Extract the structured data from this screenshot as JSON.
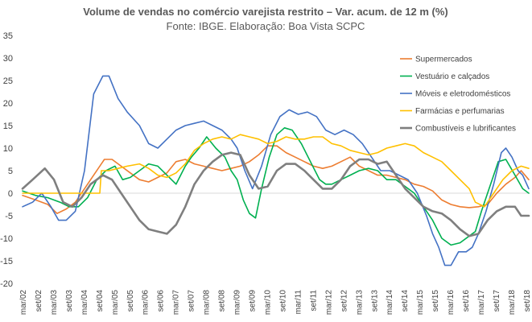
{
  "chart_data": {
    "type": "line",
    "title": "Volume de vendas no comércio varejista restrito – Var. acum. de 12 m (%)",
    "subtitle": "Fonte: IBGE. Elaboração: Boa Vista SCPC",
    "xlabel": "",
    "ylabel": "",
    "ylim": [
      -20,
      35
    ],
    "yticks": [
      -20,
      -15,
      -10,
      -5,
      0,
      5,
      10,
      15,
      20,
      25,
      30,
      35
    ],
    "xlim": [
      2002.17,
      2018.75
    ],
    "xtick_labels": [
      "mar/02",
      "set/02",
      "mar/03",
      "set/03",
      "mar/04",
      "set/04",
      "mar/05",
      "set/05",
      "mar/06",
      "set/06",
      "mar/07",
      "set/07",
      "mar/08",
      "set/08",
      "mar/09",
      "set/09",
      "mar/10",
      "set/10",
      "mar/11",
      "set/11",
      "mar/12",
      "set/12",
      "mar/13",
      "set/13",
      "mar/14",
      "set/14",
      "mar/15",
      "set/15",
      "mar/16",
      "set/16",
      "mar/17",
      "set/17",
      "mar/18",
      "set/18"
    ],
    "grid": false,
    "legend_position": "right",
    "series": [
      {
        "name": "Supermercados",
        "color": "#ED7D31",
        "x": [
          2002.17,
          2002.6,
          2003.0,
          2003.3,
          2003.6,
          2003.9,
          2004.2,
          2004.5,
          2004.85,
          2005.1,
          2005.4,
          2005.7,
          2006.0,
          2006.3,
          2006.6,
          2006.9,
          2007.2,
          2007.5,
          2007.8,
          2008.1,
          2008.4,
          2008.7,
          2009.0,
          2009.3,
          2009.6,
          2009.9,
          2010.2,
          2010.5,
          2010.8,
          2011.1,
          2011.4,
          2011.7,
          2012.0,
          2012.3,
          2012.6,
          2012.9,
          2013.2,
          2013.5,
          2013.8,
          2014.1,
          2014.4,
          2014.7,
          2015.0,
          2015.3,
          2015.6,
          2015.9,
          2016.2,
          2016.5,
          2016.8,
          2017.1,
          2017.4,
          2017.7,
          2018.0,
          2018.3,
          2018.5,
          2018.75
        ],
        "y": [
          -0.5,
          -1.5,
          -2.5,
          -4.5,
          -3.5,
          -2,
          1,
          4,
          7.5,
          7.5,
          6,
          4.5,
          3,
          2.5,
          3.5,
          4.5,
          7,
          7.5,
          6.5,
          6,
          5.5,
          5,
          5.5,
          6,
          7,
          8.5,
          10.5,
          10.5,
          9,
          8,
          7,
          6,
          5.5,
          6,
          7,
          8,
          6,
          5,
          4,
          4,
          3.5,
          3,
          2,
          1.5,
          0.5,
          -1.5,
          -2.5,
          -3,
          -3.2,
          -3,
          -2.5,
          0,
          2,
          3.5,
          5,
          3
        ]
      },
      {
        "name": "Vestuário e calçados",
        "color": "#00B050",
        "x": [
          2002.17,
          2002.6,
          2003.0,
          2003.4,
          2003.7,
          2004.0,
          2004.3,
          2004.6,
          2004.9,
          2005.2,
          2005.45,
          2005.7,
          2006.0,
          2006.3,
          2006.6,
          2006.9,
          2007.2,
          2007.5,
          2007.7,
          2007.95,
          2008.2,
          2008.5,
          2008.8,
          2009.0,
          2009.2,
          2009.4,
          2009.6,
          2009.8,
          2010.0,
          2010.25,
          2010.5,
          2010.75,
          2011.0,
          2011.3,
          2011.6,
          2011.9,
          2012.1,
          2012.3,
          2012.6,
          2012.9,
          2013.2,
          2013.5,
          2013.8,
          2014.1,
          2014.4,
          2014.7,
          2015.0,
          2015.3,
          2015.6,
          2015.9,
          2016.2,
          2016.5,
          2016.8,
          2017.0,
          2017.2,
          2017.5,
          2017.75,
          2018.0,
          2018.3,
          2018.55,
          2018.75
        ],
        "y": [
          0.5,
          -0.5,
          -1,
          -2,
          -3,
          -3,
          -1,
          3,
          5,
          6,
          3,
          3.5,
          5,
          6.5,
          6,
          4,
          2,
          6,
          8,
          10,
          12.5,
          10,
          8,
          5,
          3,
          -1.5,
          -4.5,
          -5.5,
          1,
          8,
          13,
          14.5,
          14,
          11,
          7,
          3,
          2,
          2,
          3,
          4,
          5,
          5.5,
          5,
          3,
          3,
          1.5,
          0,
          -3,
          -6,
          -10,
          -11.5,
          -11,
          -9.5,
          -8.5,
          -4,
          2,
          7,
          7.5,
          4,
          1,
          0
        ]
      },
      {
        "name": "Móveis e eletrodomésticos",
        "color": "#4472C4",
        "x": [
          2002.17,
          2002.5,
          2002.8,
          2003.1,
          2003.35,
          2003.6,
          2003.9,
          2004.2,
          2004.5,
          2004.8,
          2005.0,
          2005.3,
          2005.6,
          2006.0,
          2006.3,
          2006.6,
          2006.9,
          2007.2,
          2007.5,
          2007.8,
          2008.1,
          2008.4,
          2008.7,
          2009.0,
          2009.2,
          2009.45,
          2009.7,
          2010.0,
          2010.3,
          2010.6,
          2010.9,
          2011.2,
          2011.5,
          2011.8,
          2012.1,
          2012.4,
          2012.7,
          2013.0,
          2013.3,
          2013.6,
          2013.9,
          2014.2,
          2014.5,
          2014.8,
          2015.1,
          2015.4,
          2015.6,
          2015.8,
          2016.0,
          2016.2,
          2016.45,
          2016.7,
          2016.9,
          2017.1,
          2017.35,
          2017.6,
          2017.85,
          2018.0,
          2018.2,
          2018.4,
          2018.55,
          2018.75
        ],
        "y": [
          -3,
          -2,
          0,
          -3,
          -6,
          -6,
          -4,
          5,
          22,
          26,
          26,
          21,
          18,
          15,
          11,
          10,
          12,
          14,
          15,
          15.5,
          16,
          15,
          14,
          12,
          10,
          5,
          1,
          6,
          13,
          17,
          18.5,
          17.5,
          18,
          17,
          14,
          13,
          14,
          13,
          11,
          8,
          5,
          5,
          4,
          3,
          0,
          -5,
          -9,
          -12,
          -16,
          -16,
          -13,
          -13,
          -12,
          -9,
          -4,
          2,
          9,
          10,
          8,
          5,
          4,
          1
        ]
      },
      {
        "name": "Farmácias e perfumarias",
        "color": "#FFC000",
        "x": [
          2002.17,
          2002.6,
          2003.0,
          2003.5,
          2003.9,
          2004.2,
          2004.5,
          2004.7,
          2004.75,
          2005.0,
          2005.3,
          2005.6,
          2006.0,
          2006.3,
          2006.6,
          2006.9,
          2007.2,
          2007.5,
          2007.8,
          2008.1,
          2008.4,
          2008.7,
          2009.0,
          2009.3,
          2009.6,
          2009.9,
          2010.2,
          2010.5,
          2010.8,
          2011.1,
          2011.4,
          2011.7,
          2012.0,
          2012.3,
          2012.6,
          2012.9,
          2013.2,
          2013.5,
          2013.8,
          2014.1,
          2014.4,
          2014.7,
          2015.0,
          2015.3,
          2015.6,
          2015.9,
          2016.2,
          2016.5,
          2016.8,
          2017.0,
          2017.3,
          2017.6,
          2017.9,
          2018.2,
          2018.5,
          2018.75
        ],
        "y": [
          0,
          0,
          0,
          0,
          0,
          0,
          0,
          0,
          5,
          5,
          5.5,
          6,
          6.5,
          5.5,
          4,
          3.5,
          4.5,
          6.5,
          9.5,
          11,
          12,
          12.5,
          12,
          13,
          12.5,
          12,
          11,
          11.5,
          12.5,
          12,
          12,
          12.5,
          12.5,
          11,
          10.5,
          9.5,
          9,
          8.5,
          9,
          10,
          10.5,
          11,
          10.5,
          9,
          8,
          7,
          5,
          3,
          1,
          -2,
          -3,
          0,
          3,
          5,
          6,
          5.5
        ]
      },
      {
        "name": "Combustíveis e lubrificantes",
        "color": "#7F7F7F",
        "x": [
          2002.17,
          2002.5,
          2002.9,
          2003.2,
          2003.5,
          2003.8,
          2004.1,
          2004.4,
          2004.8,
          2005.1,
          2005.4,
          2005.7,
          2006.0,
          2006.3,
          2006.6,
          2006.9,
          2007.2,
          2007.5,
          2007.8,
          2008.1,
          2008.4,
          2008.7,
          2009.0,
          2009.3,
          2009.6,
          2009.9,
          2010.2,
          2010.5,
          2010.8,
          2011.1,
          2011.4,
          2011.7,
          2012.0,
          2012.3,
          2012.6,
          2012.9,
          2013.2,
          2013.5,
          2013.8,
          2014.1,
          2014.4,
          2014.7,
          2015.0,
          2015.3,
          2015.6,
          2015.9,
          2016.2,
          2016.5,
          2016.8,
          2017.1,
          2017.4,
          2017.7,
          2018.0,
          2018.3,
          2018.5,
          2018.75
        ],
        "y": [
          1,
          3,
          5.5,
          3,
          -2,
          -3,
          -1,
          2,
          4,
          3,
          0,
          -3,
          -6,
          -8,
          -8.5,
          -9,
          -7,
          -3,
          2,
          5,
          7,
          8.5,
          9,
          8.5,
          4,
          1,
          1.5,
          5,
          6.5,
          6.5,
          5,
          3,
          1,
          1,
          3,
          6,
          7.5,
          7.5,
          6.5,
          7,
          4,
          1,
          -1,
          -3,
          -4,
          -4.5,
          -6,
          -8,
          -9.5,
          -9,
          -6,
          -4,
          -3,
          -3,
          -5,
          -5
        ]
      }
    ]
  }
}
